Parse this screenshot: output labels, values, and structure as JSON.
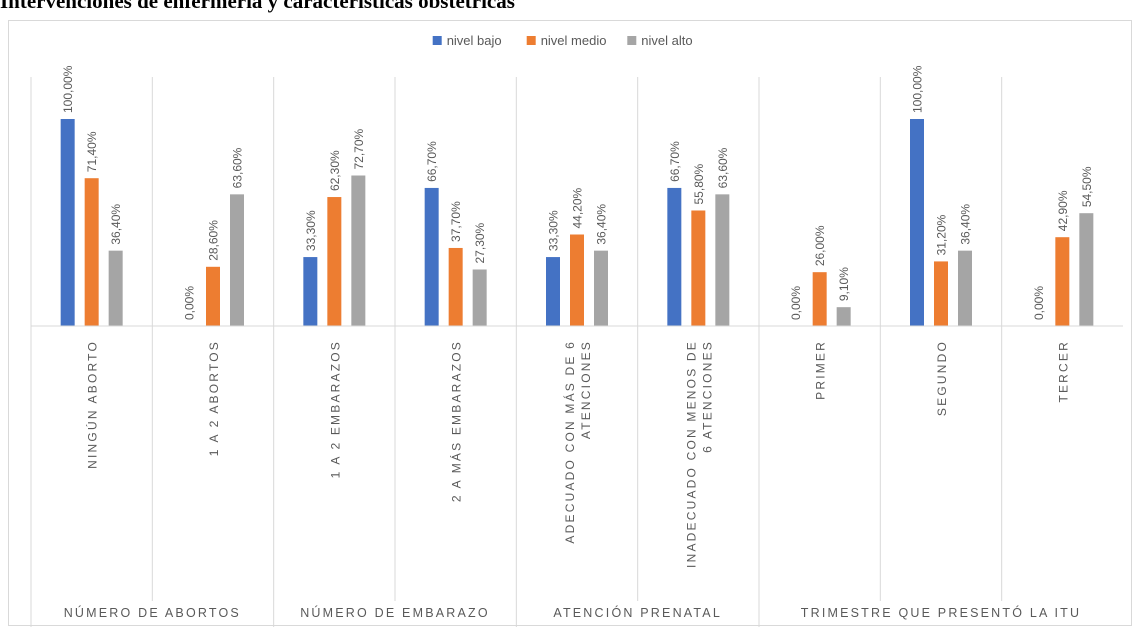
{
  "title": "Intervenciones de enfermería y características obstétricas",
  "chart_data": {
    "type": "bar",
    "legend_position": "top",
    "grid": false,
    "ylim": [
      0,
      100
    ],
    "series": [
      {
        "name": "nivel bajo",
        "color": "#4472c4",
        "values": [
          100,
          0,
          33.3,
          66.7,
          33.3,
          66.7,
          0,
          100,
          0
        ]
      },
      {
        "name": "nivel medio",
        "color": "#ed7d31",
        "values": [
          71.4,
          28.6,
          62.3,
          37.7,
          44.2,
          55.8,
          26.0,
          31.2,
          42.9
        ]
      },
      {
        "name": "nivel alto",
        "color": "#a5a5a5",
        "values": [
          36.4,
          63.6,
          72.7,
          27.3,
          36.4,
          63.6,
          9.1,
          36.4,
          54.5
        ]
      }
    ],
    "data_labels": [
      [
        "100,00%",
        "0,00%",
        "33,30%",
        "66,70%",
        "33,30%",
        "66,70%",
        "0,00%",
        "100,00%",
        "0,00%"
      ],
      [
        "71,40%",
        "28,60%",
        "62,30%",
        "37,70%",
        "44,20%",
        "55,80%",
        "26,00%",
        "31,20%",
        "42,90%"
      ],
      [
        "36,40%",
        "63,60%",
        "72,70%",
        "27,30%",
        "36,40%",
        "63,60%",
        "9,10%",
        "36,40%",
        "54,50%"
      ]
    ],
    "categories": [
      [
        "NINGÚN ABORTO"
      ],
      [
        "1 A 2 ABORTOS"
      ],
      [
        "1 A 2 EMBARAZOS"
      ],
      [
        "2 A MÁS EMBARAZOS"
      ],
      [
        "ADECUADO CON MÁS DE 6",
        "ATENCIONES"
      ],
      [
        "INADECUADO CON MENOS DE",
        "6 ATENCIONES"
      ],
      [
        "PRIMER"
      ],
      [
        "SEGUNDO"
      ],
      [
        "TERCER"
      ]
    ],
    "groups": [
      {
        "label": "NÚMERO DE ABORTOS",
        "categories": 2
      },
      {
        "label": "NÚMERO DE EMBARAZO",
        "categories": 2
      },
      {
        "label": "ATENCIÓN PRENATAL",
        "categories": 2
      },
      {
        "label": "TRIMESTRE QUE PRESENTÓ LA ITU",
        "categories": 3
      }
    ]
  }
}
